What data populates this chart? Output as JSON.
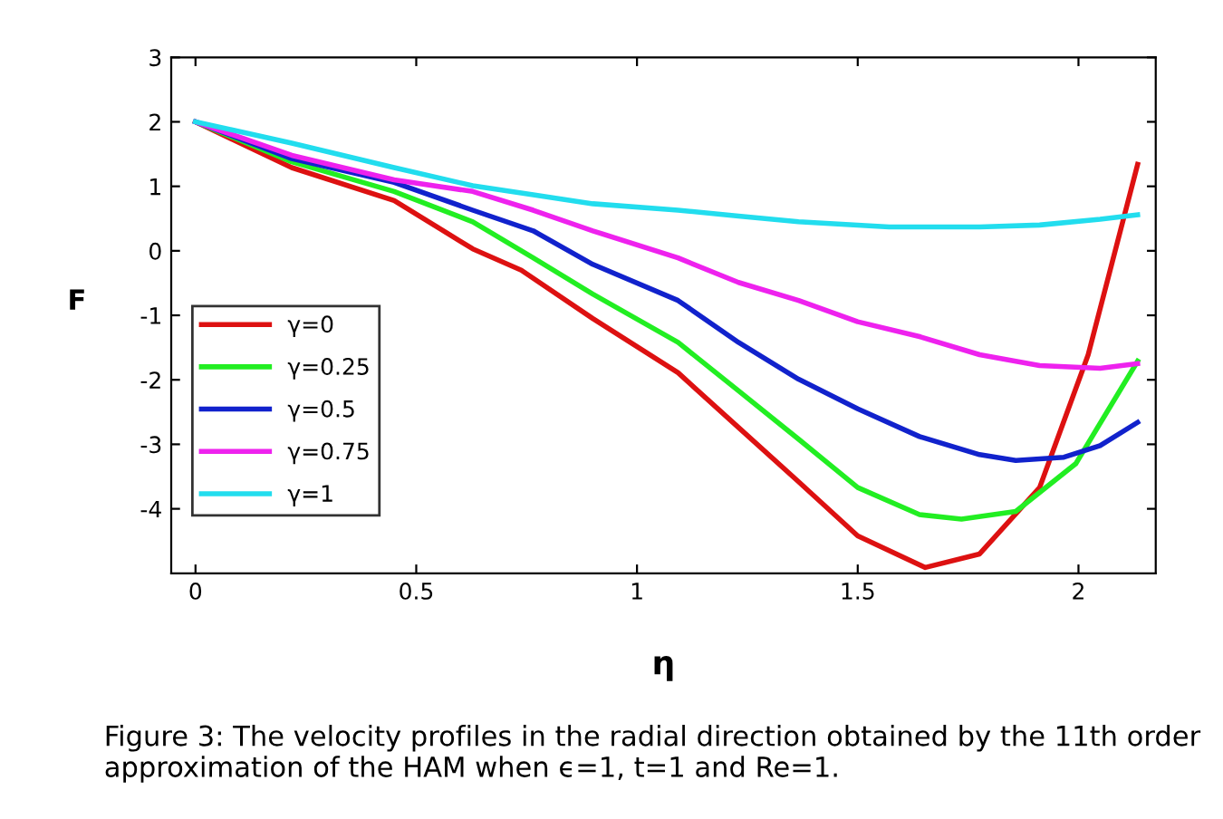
{
  "chart_data": {
    "type": "line",
    "xlabel": "η",
    "ylabel": "F",
    "xlim": [
      -0.055,
      2.175
    ],
    "ylim": [
      -5,
      3
    ],
    "xticks": [
      0,
      0.5,
      1,
      1.5,
      2
    ],
    "yticks": [
      -4,
      -3,
      -2,
      -1,
      0,
      1,
      2,
      3
    ],
    "grid": false,
    "legend": "left",
    "marker": "none",
    "line_style": "solid",
    "series": [
      {
        "name": "γ=0",
        "color": "#dd1111",
        "x": [
          0,
          0.218,
          0.45,
          0.628,
          0.738,
          0.9,
          1.093,
          1.23,
          1.366,
          1.5,
          1.653,
          1.776,
          1.912,
          2.022,
          2.134
        ],
        "values": [
          2,
          1.29,
          0.78,
          0.03,
          -0.3,
          -1.05,
          -1.89,
          -2.74,
          -3.58,
          -4.42,
          -4.91,
          -4.7,
          -3.67,
          -1.61,
          1.34
        ]
      },
      {
        "name": "γ=0.25",
        "color": "#22ee22",
        "x": [
          0,
          0.218,
          0.45,
          0.628,
          0.765,
          0.9,
          1.093,
          1.23,
          1.366,
          1.5,
          1.64,
          1.735,
          1.858,
          1.994,
          2.134
        ],
        "values": [
          2,
          1.38,
          0.92,
          0.45,
          -0.11,
          -0.67,
          -1.42,
          -2.17,
          -2.92,
          -3.67,
          -4.09,
          -4.16,
          -4.04,
          -3.3,
          -1.71
        ]
      },
      {
        "name": "γ=0.5",
        "color": "#1122cc",
        "x": [
          0,
          0.218,
          0.45,
          0.628,
          0.765,
          0.9,
          1.093,
          1.23,
          1.366,
          1.5,
          1.64,
          1.776,
          1.858,
          1.967,
          2.049,
          2.134
        ],
        "values": [
          2,
          1.43,
          1.06,
          0.63,
          0.31,
          -0.21,
          -0.77,
          -1.42,
          -1.99,
          -2.45,
          -2.88,
          -3.16,
          -3.25,
          -3.2,
          -3.02,
          -2.66
        ]
      },
      {
        "name": "γ=0.75",
        "color": "#ee22ee",
        "x": [
          0,
          0.218,
          0.45,
          0.628,
          0.765,
          0.9,
          1.093,
          1.23,
          1.366,
          1.5,
          1.64,
          1.776,
          1.912,
          2.049,
          2.134
        ],
        "values": [
          2,
          1.48,
          1.1,
          0.92,
          0.63,
          0.31,
          -0.11,
          -0.49,
          -0.77,
          -1.1,
          -1.33,
          -1.61,
          -1.78,
          -1.82,
          -1.75
        ]
      },
      {
        "name": "γ=1",
        "color": "#22ddee",
        "x": [
          0,
          0.218,
          0.45,
          0.628,
          0.765,
          0.9,
          1.093,
          1.23,
          1.366,
          1.571,
          1.776,
          1.912,
          2.049,
          2.134
        ],
        "values": [
          2,
          1.67,
          1.29,
          1.01,
          0.87,
          0.73,
          0.63,
          0.54,
          0.45,
          0.37,
          0.37,
          0.4,
          0.49,
          0.56
        ]
      }
    ],
    "annotations": [
      "Figure 3: The velocity profiles in the radial direction obtained by the 11th order approximation of the HAM when ϵ=1, t=1 and Re=1."
    ]
  }
}
